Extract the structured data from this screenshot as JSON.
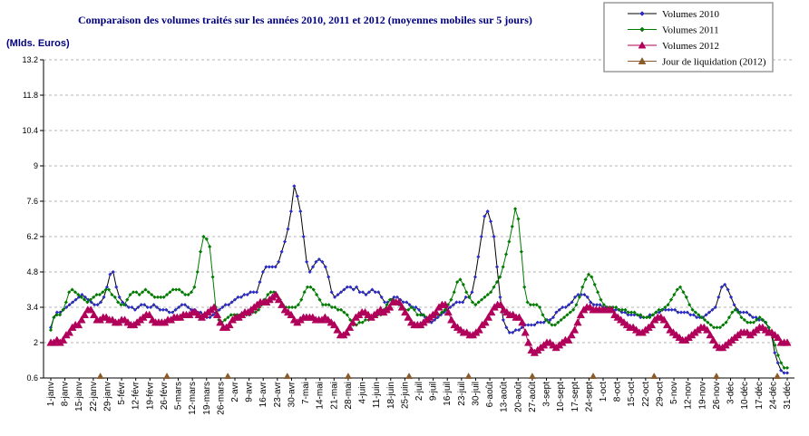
{
  "chart_data": {
    "type": "line",
    "title": "Comparaison des volumes traités sur les années 2010, 2011 et 2012 (moyennes mobiles sur 5 jours)",
    "ylabel": "(Mlds. Euros)",
    "ylim": [
      0.6,
      13.2
    ],
    "yticks": [
      "0.6",
      "2",
      "3.4",
      "4.8",
      "6.2",
      "7.6",
      "9",
      "10.4",
      "11.8",
      "13.2"
    ],
    "grid": true,
    "legend_position": "top-right",
    "x_tick_labels": [
      "1-janv",
      "8-janv",
      "15-janv",
      "22-janv",
      "29-janv",
      "5-févr",
      "12-févr",
      "19-févr",
      "26-févr",
      "5-mars",
      "12-mars",
      "19-mars",
      "26-mars",
      "2-avr",
      "9-avr",
      "16-avr",
      "23-avr",
      "30-avr",
      "7-mai",
      "14-mai",
      "21-mai",
      "28-mai",
      "4-juin",
      "11-juin",
      "18-juin",
      "25-juin",
      "2-juil",
      "9-juil",
      "16-juil",
      "23-juil",
      "30-juil",
      "6-août",
      "13-août",
      "20-août",
      "27-août",
      "3-sept",
      "10-sept",
      "17-sept",
      "24-sept",
      "1-oct",
      "8-oct",
      "15-oct",
      "22-oct",
      "29-oct",
      "5-nov",
      "12-nov",
      "19-nov",
      "26-nov",
      "3-déc",
      "10-déc",
      "17-déc",
      "24-déc",
      "31-déc"
    ],
    "series": [
      {
        "name": "Volumes 2010",
        "color": "#2b2bc8",
        "line_color": "#000000",
        "marker": "diamond",
        "values": [
          2.6,
          3.0,
          3.2,
          3.2,
          3.3,
          3.4,
          3.5,
          3.6,
          3.7,
          3.8,
          3.9,
          3.8,
          3.7,
          3.6,
          3.5,
          3.5,
          3.6,
          3.8,
          4.2,
          4.7,
          4.8,
          4.2,
          3.8,
          3.6,
          3.5,
          3.4,
          3.4,
          3.3,
          3.4,
          3.5,
          3.5,
          3.4,
          3.4,
          3.5,
          3.4,
          3.3,
          3.3,
          3.3,
          3.2,
          3.2,
          3.3,
          3.4,
          3.5,
          3.5,
          3.4,
          3.3,
          3.3,
          3.2,
          3.2,
          3.1,
          3.0,
          3.0,
          3.1,
          3.2,
          3.3,
          3.4,
          3.5,
          3.5,
          3.6,
          3.7,
          3.8,
          3.8,
          3.9,
          3.9,
          4.0,
          4.0,
          4.0,
          4.4,
          4.8,
          5.0,
          5.0,
          5.0,
          5.0,
          5.2,
          5.6,
          6.0,
          6.5,
          7.2,
          8.2,
          7.8,
          7.2,
          6.2,
          5.2,
          4.8,
          5.0,
          5.2,
          5.3,
          5.2,
          5.0,
          4.6,
          4.0,
          3.8,
          3.9,
          4.0,
          4.1,
          4.2,
          4.2,
          4.1,
          4.2,
          4.0,
          4.0,
          3.9,
          4.0,
          4.1,
          4.0,
          4.0,
          3.8,
          3.6,
          3.6,
          3.7,
          3.8,
          3.8,
          3.7,
          3.6,
          3.6,
          3.5,
          3.4,
          3.4,
          3.3,
          3.1,
          3.0,
          2.9,
          2.8,
          2.9,
          3.0,
          3.1,
          3.2,
          3.3,
          3.4,
          3.5,
          3.6,
          3.6,
          3.6,
          3.8,
          3.8,
          4.0,
          4.6,
          5.4,
          6.2,
          7.0,
          7.2,
          6.8,
          6.2,
          5.0,
          3.8,
          2.9,
          2.6,
          2.4,
          2.4,
          2.5,
          2.5,
          2.6,
          2.7,
          2.7,
          2.7,
          2.7,
          2.8,
          2.8,
          2.8,
          2.9,
          2.9,
          3.0,
          3.2,
          3.3,
          3.4,
          3.4,
          3.5,
          3.6,
          3.8,
          3.9,
          3.9,
          3.9,
          3.8,
          3.6,
          3.5,
          3.5,
          3.5,
          3.4,
          3.4,
          3.3,
          3.3,
          3.3,
          3.3,
          3.2,
          3.2,
          3.1,
          3.1,
          3.1,
          3.1,
          3.0,
          3.0,
          3.0,
          3.1,
          3.1,
          3.2,
          3.2,
          3.3,
          3.3,
          3.3,
          3.3,
          3.3,
          3.2,
          3.2,
          3.2,
          3.2,
          3.1,
          3.1,
          3.0,
          3.0,
          3.0,
          3.1,
          3.2,
          3.3,
          3.4,
          3.8,
          4.2,
          4.3,
          4.1,
          3.8,
          3.5,
          3.3,
          3.2,
          3.2,
          3.2,
          3.1,
          3.0,
          3.0,
          2.9,
          2.9,
          2.8,
          2.6,
          2.3,
          1.6,
          1.2,
          0.9,
          0.8,
          0.8
        ]
      },
      {
        "name": "Volumes 2011",
        "color": "#007a00",
        "line_color": "#007a00",
        "marker": "diamond",
        "values": [
          2.5,
          3.0,
          3.1,
          3.1,
          3.3,
          3.6,
          4.0,
          4.1,
          4.0,
          3.9,
          3.8,
          3.7,
          3.6,
          3.7,
          3.8,
          3.9,
          3.9,
          4.0,
          4.1,
          4.1,
          3.9,
          3.8,
          3.6,
          3.5,
          3.5,
          3.7,
          3.9,
          4.0,
          4.0,
          3.9,
          4.0,
          4.1,
          4.0,
          3.9,
          3.8,
          3.8,
          3.8,
          3.8,
          3.9,
          4.0,
          4.1,
          4.1,
          4.1,
          4.0,
          3.9,
          3.9,
          4.0,
          4.2,
          4.8,
          5.6,
          6.2,
          6.1,
          5.8,
          4.6,
          3.4,
          2.9,
          2.8,
          2.9,
          3.0,
          3.1,
          3.1,
          3.1,
          3.1,
          3.1,
          3.1,
          3.1,
          3.2,
          3.2,
          3.3,
          3.5,
          3.7,
          3.9,
          4.0,
          4.0,
          3.9,
          3.7,
          3.5,
          3.4,
          3.4,
          3.4,
          3.4,
          3.5,
          3.7,
          4.0,
          4.2,
          4.2,
          4.1,
          3.9,
          3.7,
          3.5,
          3.5,
          3.5,
          3.4,
          3.4,
          3.3,
          3.3,
          3.2,
          3.1,
          2.9,
          2.7,
          2.7,
          2.8,
          2.8,
          2.9,
          2.9,
          3.0,
          3.1,
          3.1,
          3.1,
          3.3,
          3.5,
          3.7,
          3.7,
          3.6,
          3.5,
          3.4,
          3.3,
          3.3,
          3.4,
          3.3,
          3.1,
          3.1,
          3.1,
          3.0,
          3.0,
          3.1,
          3.1,
          3.1,
          3.2,
          3.3,
          3.5,
          3.7,
          4.0,
          4.4,
          4.5,
          4.3,
          4.0,
          3.8,
          3.6,
          3.5,
          3.6,
          3.7,
          3.8,
          3.9,
          4.0,
          4.2,
          4.4,
          4.6,
          5.0,
          5.5,
          6.0,
          6.6,
          7.3,
          6.9,
          5.6,
          4.2,
          3.6,
          3.5,
          3.5,
          3.5,
          3.4,
          3.1,
          2.9,
          2.8,
          2.7,
          2.7,
          2.8,
          2.9,
          3.0,
          3.1,
          3.2,
          3.3,
          3.5,
          3.8,
          4.2,
          4.5,
          4.7,
          4.6,
          4.3,
          4.0,
          3.7,
          3.5,
          3.4,
          3.4,
          3.4,
          3.4,
          3.3,
          3.3,
          3.3,
          3.2,
          3.2,
          3.2,
          3.1,
          3.1,
          3.0,
          3.0,
          3.0,
          3.1,
          3.2,
          3.3,
          3.3,
          3.4,
          3.5,
          3.7,
          3.9,
          4.1,
          4.2,
          4.0,
          3.8,
          3.5,
          3.3,
          3.2,
          3.1,
          3.0,
          2.9,
          2.8,
          2.7,
          2.6,
          2.6,
          2.6,
          2.7,
          2.8,
          3.0,
          3.2,
          3.3,
          3.2,
          3.0,
          2.9,
          2.8,
          2.8,
          2.8,
          2.9,
          3.0,
          2.9,
          2.8,
          2.6,
          2.3,
          1.9,
          1.5,
          1.2,
          1.0,
          1.0
        ]
      },
      {
        "name": "Volumes 2012",
        "color": "#b0005a",
        "line_color": "#b0005a",
        "marker": "triangle",
        "values": [
          2.0,
          2.0,
          2.1,
          2.0,
          2.1,
          2.3,
          2.4,
          2.6,
          2.7,
          2.7,
          2.9,
          3.1,
          3.3,
          3.3,
          3.1,
          2.9,
          2.9,
          3.0,
          3.0,
          2.9,
          2.9,
          2.8,
          2.8,
          2.9,
          2.9,
          2.8,
          2.7,
          2.7,
          2.8,
          2.9,
          3.0,
          3.1,
          3.1,
          2.9,
          2.8,
          2.8,
          2.8,
          2.8,
          2.9,
          2.9,
          3.0,
          3.0,
          3.0,
          3.1,
          3.1,
          3.1,
          3.2,
          3.2,
          3.1,
          3.0,
          3.1,
          3.2,
          3.3,
          3.4,
          3.1,
          2.8,
          2.6,
          2.6,
          2.7,
          2.9,
          3.0,
          3.0,
          3.1,
          3.2,
          3.2,
          3.3,
          3.4,
          3.5,
          3.6,
          3.6,
          3.6,
          3.7,
          3.8,
          3.9,
          3.7,
          3.5,
          3.3,
          3.2,
          3.1,
          2.9,
          2.8,
          2.9,
          3.0,
          3.0,
          3.0,
          3.0,
          2.9,
          2.9,
          2.9,
          3.0,
          2.9,
          2.8,
          2.7,
          2.5,
          2.3,
          2.3,
          2.4,
          2.6,
          2.8,
          3.0,
          3.1,
          3.2,
          3.2,
          3.1,
          3.0,
          3.1,
          3.2,
          3.3,
          3.2,
          3.3,
          3.4,
          3.6,
          3.6,
          3.6,
          3.4,
          3.2,
          3.0,
          2.8,
          2.7,
          2.7,
          2.7,
          2.8,
          2.9,
          3.0,
          3.1,
          3.2,
          3.4,
          3.5,
          3.5,
          3.2,
          2.9,
          2.7,
          2.6,
          2.5,
          2.4,
          2.4,
          2.3,
          2.3,
          2.4,
          2.5,
          2.7,
          2.8,
          3.0,
          3.2,
          3.4,
          3.5,
          3.5,
          3.3,
          3.2,
          3.1,
          3.1,
          3.0,
          3.0,
          2.8,
          2.4,
          2.0,
          1.7,
          1.6,
          1.7,
          1.8,
          1.9,
          2.0,
          2.0,
          1.9,
          1.8,
          1.9,
          2.0,
          2.1,
          2.1,
          2.3,
          2.5,
          2.8,
          3.1,
          3.3,
          3.4,
          3.4,
          3.3,
          3.3,
          3.3,
          3.3,
          3.3,
          3.3,
          3.3,
          3.1,
          3.0,
          2.9,
          2.8,
          2.7,
          2.6,
          2.6,
          2.5,
          2.4,
          2.4,
          2.5,
          2.6,
          2.7,
          2.9,
          3.0,
          3.0,
          2.9,
          2.7,
          2.5,
          2.4,
          2.3,
          2.2,
          2.1,
          2.1,
          2.2,
          2.3,
          2.4,
          2.5,
          2.6,
          2.6,
          2.5,
          2.3,
          2.1,
          1.9,
          1.8,
          1.8,
          1.9,
          2.0,
          2.1,
          2.2,
          2.3,
          2.4,
          2.4,
          2.4,
          2.3,
          2.4,
          2.5,
          2.6,
          2.6,
          2.5,
          2.4,
          2.4,
          2.3,
          2.2,
          2.0,
          2.0,
          2.0
        ]
      },
      {
        "name": "Jour de liquidation (2012)",
        "color": "#8b5a2b",
        "marker": "triangle",
        "points": [
          {
            "x": 3.5,
            "y": 0.6
          },
          {
            "x": 8.2,
            "y": 0.6
          },
          {
            "x": 12.5,
            "y": 0.6
          },
          {
            "x": 16.7,
            "y": 0.6
          },
          {
            "x": 21.0,
            "y": 0.6
          },
          {
            "x": 25.3,
            "y": 0.6
          },
          {
            "x": 29.5,
            "y": 0.6
          },
          {
            "x": 34.0,
            "y": 0.6
          },
          {
            "x": 38.3,
            "y": 0.6
          },
          {
            "x": 42.6,
            "y": 0.6
          },
          {
            "x": 47.0,
            "y": 0.6
          },
          {
            "x": 51.3,
            "y": 0.6
          }
        ]
      }
    ]
  }
}
